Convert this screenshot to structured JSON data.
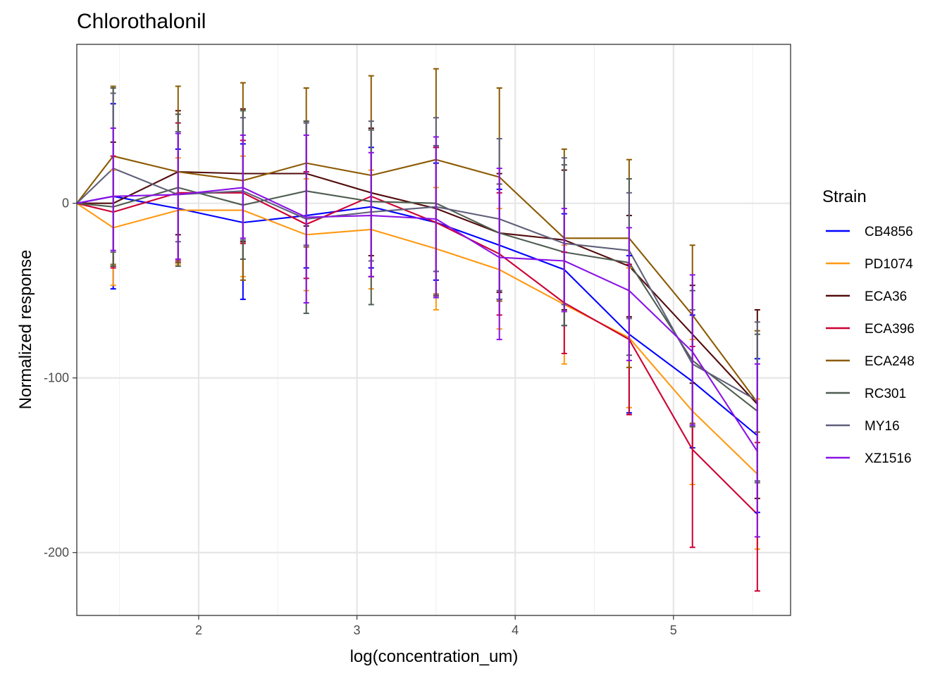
{
  "chart_data": {
    "type": "line",
    "title": "Chlorothalonil",
    "xlabel": "log(concentration_um)",
    "ylabel": "Normalized response",
    "xlim": [
      1.23,
      5.74
    ],
    "ylim": [
      -236,
      91
    ],
    "x_ticks": [
      {
        "value": 2,
        "label": "2"
      },
      {
        "value": 3,
        "label": "3"
      },
      {
        "value": 4,
        "label": "4"
      },
      {
        "value": 5,
        "label": "5"
      }
    ],
    "y_ticks": [
      {
        "value": 0,
        "label": "0"
      },
      {
        "value": -100,
        "label": "-100"
      },
      {
        "value": -200,
        "label": "-200"
      }
    ],
    "grid": true,
    "legend": {
      "title": "Strain",
      "position": "right"
    },
    "x": [
      1.23,
      1.46,
      1.87,
      2.28,
      2.68,
      3.09,
      3.5,
      3.9,
      4.31,
      4.72,
      5.12,
      5.53
    ],
    "series": [
      {
        "name": "CB4856",
        "color": "#0000ff",
        "values": [
          0,
          4,
          -3,
          -11,
          -7,
          -2,
          -11,
          -24,
          -38,
          -75,
          -102,
          -133
        ],
        "lower": [
          0,
          -49,
          -34,
          -55,
          -37,
          -37,
          -44,
          -55,
          -70,
          -120,
          -140,
          -177
        ],
        "upper": [
          0,
          57,
          31,
          34,
          18,
          32,
          23,
          8,
          -6,
          -30,
          -64,
          -89
        ]
      },
      {
        "name": "PD1074",
        "color": "#ff9912",
        "values": [
          0,
          -14,
          -4,
          -4,
          -18,
          -15,
          -26,
          -38,
          -58,
          -77,
          -119,
          -155
        ],
        "lower": [
          0,
          -47,
          -35,
          -42,
          -50,
          -49,
          -61,
          -72,
          -92,
          -117,
          -161,
          -198
        ],
        "upper": [
          0,
          19,
          26,
          27,
          14,
          19,
          9,
          -3,
          -24,
          -37,
          -78,
          -112
        ]
      },
      {
        "name": "ECA36",
        "color": "#520c0c",
        "values": [
          0,
          0,
          18,
          17,
          17,
          6,
          -3,
          -17,
          -21,
          -36,
          -75,
          -115
        ],
        "lower": [
          0,
          -36,
          -18,
          -22,
          -13,
          -30,
          -39,
          -51,
          -61,
          -65,
          -103,
          -169
        ],
        "upper": [
          0,
          35,
          53,
          54,
          47,
          43,
          32,
          17,
          19,
          -7,
          -47,
          -61
        ]
      },
      {
        "name": "ECA396",
        "color": "#cc0033",
        "values": [
          0,
          -5,
          6,
          6,
          -12,
          4,
          -11,
          -29,
          -57,
          -78,
          -141,
          -178
        ],
        "lower": [
          0,
          -37,
          -33,
          -23,
          -43,
          -42,
          -53,
          -64,
          -86,
          -121,
          -197,
          -222
        ],
        "upper": [
          0,
          27,
          46,
          36,
          18,
          42,
          32,
          6,
          -28,
          -35,
          -82,
          -137
        ]
      },
      {
        "name": "ECA248",
        "color": "#8b5a00",
        "values": [
          0,
          27,
          18,
          13,
          23,
          16,
          25,
          15,
          -20,
          -20,
          -64,
          -114
        ],
        "lower": [
          0,
          -35,
          -34,
          -44,
          -25,
          -42,
          -52,
          -56,
          -62,
          -94,
          -126,
          -131
        ],
        "upper": [
          0,
          67,
          67,
          69,
          66,
          73,
          77,
          66,
          31,
          25,
          -24,
          -73
        ]
      },
      {
        "name": "RC301",
        "color": "#4f5d50",
        "values": [
          0,
          -2,
          9,
          -1,
          7,
          1,
          0,
          -17,
          -28,
          -34,
          -90,
          -119
        ],
        "lower": [
          0,
          -36,
          -36,
          -32,
          -63,
          -58,
          -53,
          -50,
          -70,
          -87,
          -128,
          -160
        ],
        "upper": [
          0,
          66,
          51,
          53,
          47,
          42,
          33,
          11,
          22,
          14,
          -50,
          -75
        ]
      },
      {
        "name": "MY16",
        "color": "#5f5f7a",
        "values": [
          0,
          20,
          5,
          7,
          -9,
          -5,
          -2,
          -9,
          -23,
          -27,
          -92,
          -113
        ],
        "lower": [
          0,
          -28,
          -22,
          -21,
          -24,
          -33,
          -39,
          -55,
          -58,
          -66,
          -127,
          -159
        ],
        "upper": [
          0,
          63,
          41,
          49,
          46,
          47,
          49,
          37,
          26,
          6,
          -61,
          -68
        ]
      },
      {
        "name": "XZ1516",
        "color": "#8a12e6",
        "values": [
          0,
          4,
          5,
          9,
          -8,
          -7,
          -9,
          -31,
          -33,
          -50,
          -85,
          -142
        ],
        "lower": [
          0,
          -27,
          -32,
          -20,
          -57,
          -42,
          -54,
          -78,
          -62,
          -90,
          -127,
          -191
        ],
        "upper": [
          0,
          43,
          40,
          39,
          39,
          29,
          38,
          20,
          -3,
          -14,
          -41,
          -92
        ]
      }
    ]
  }
}
